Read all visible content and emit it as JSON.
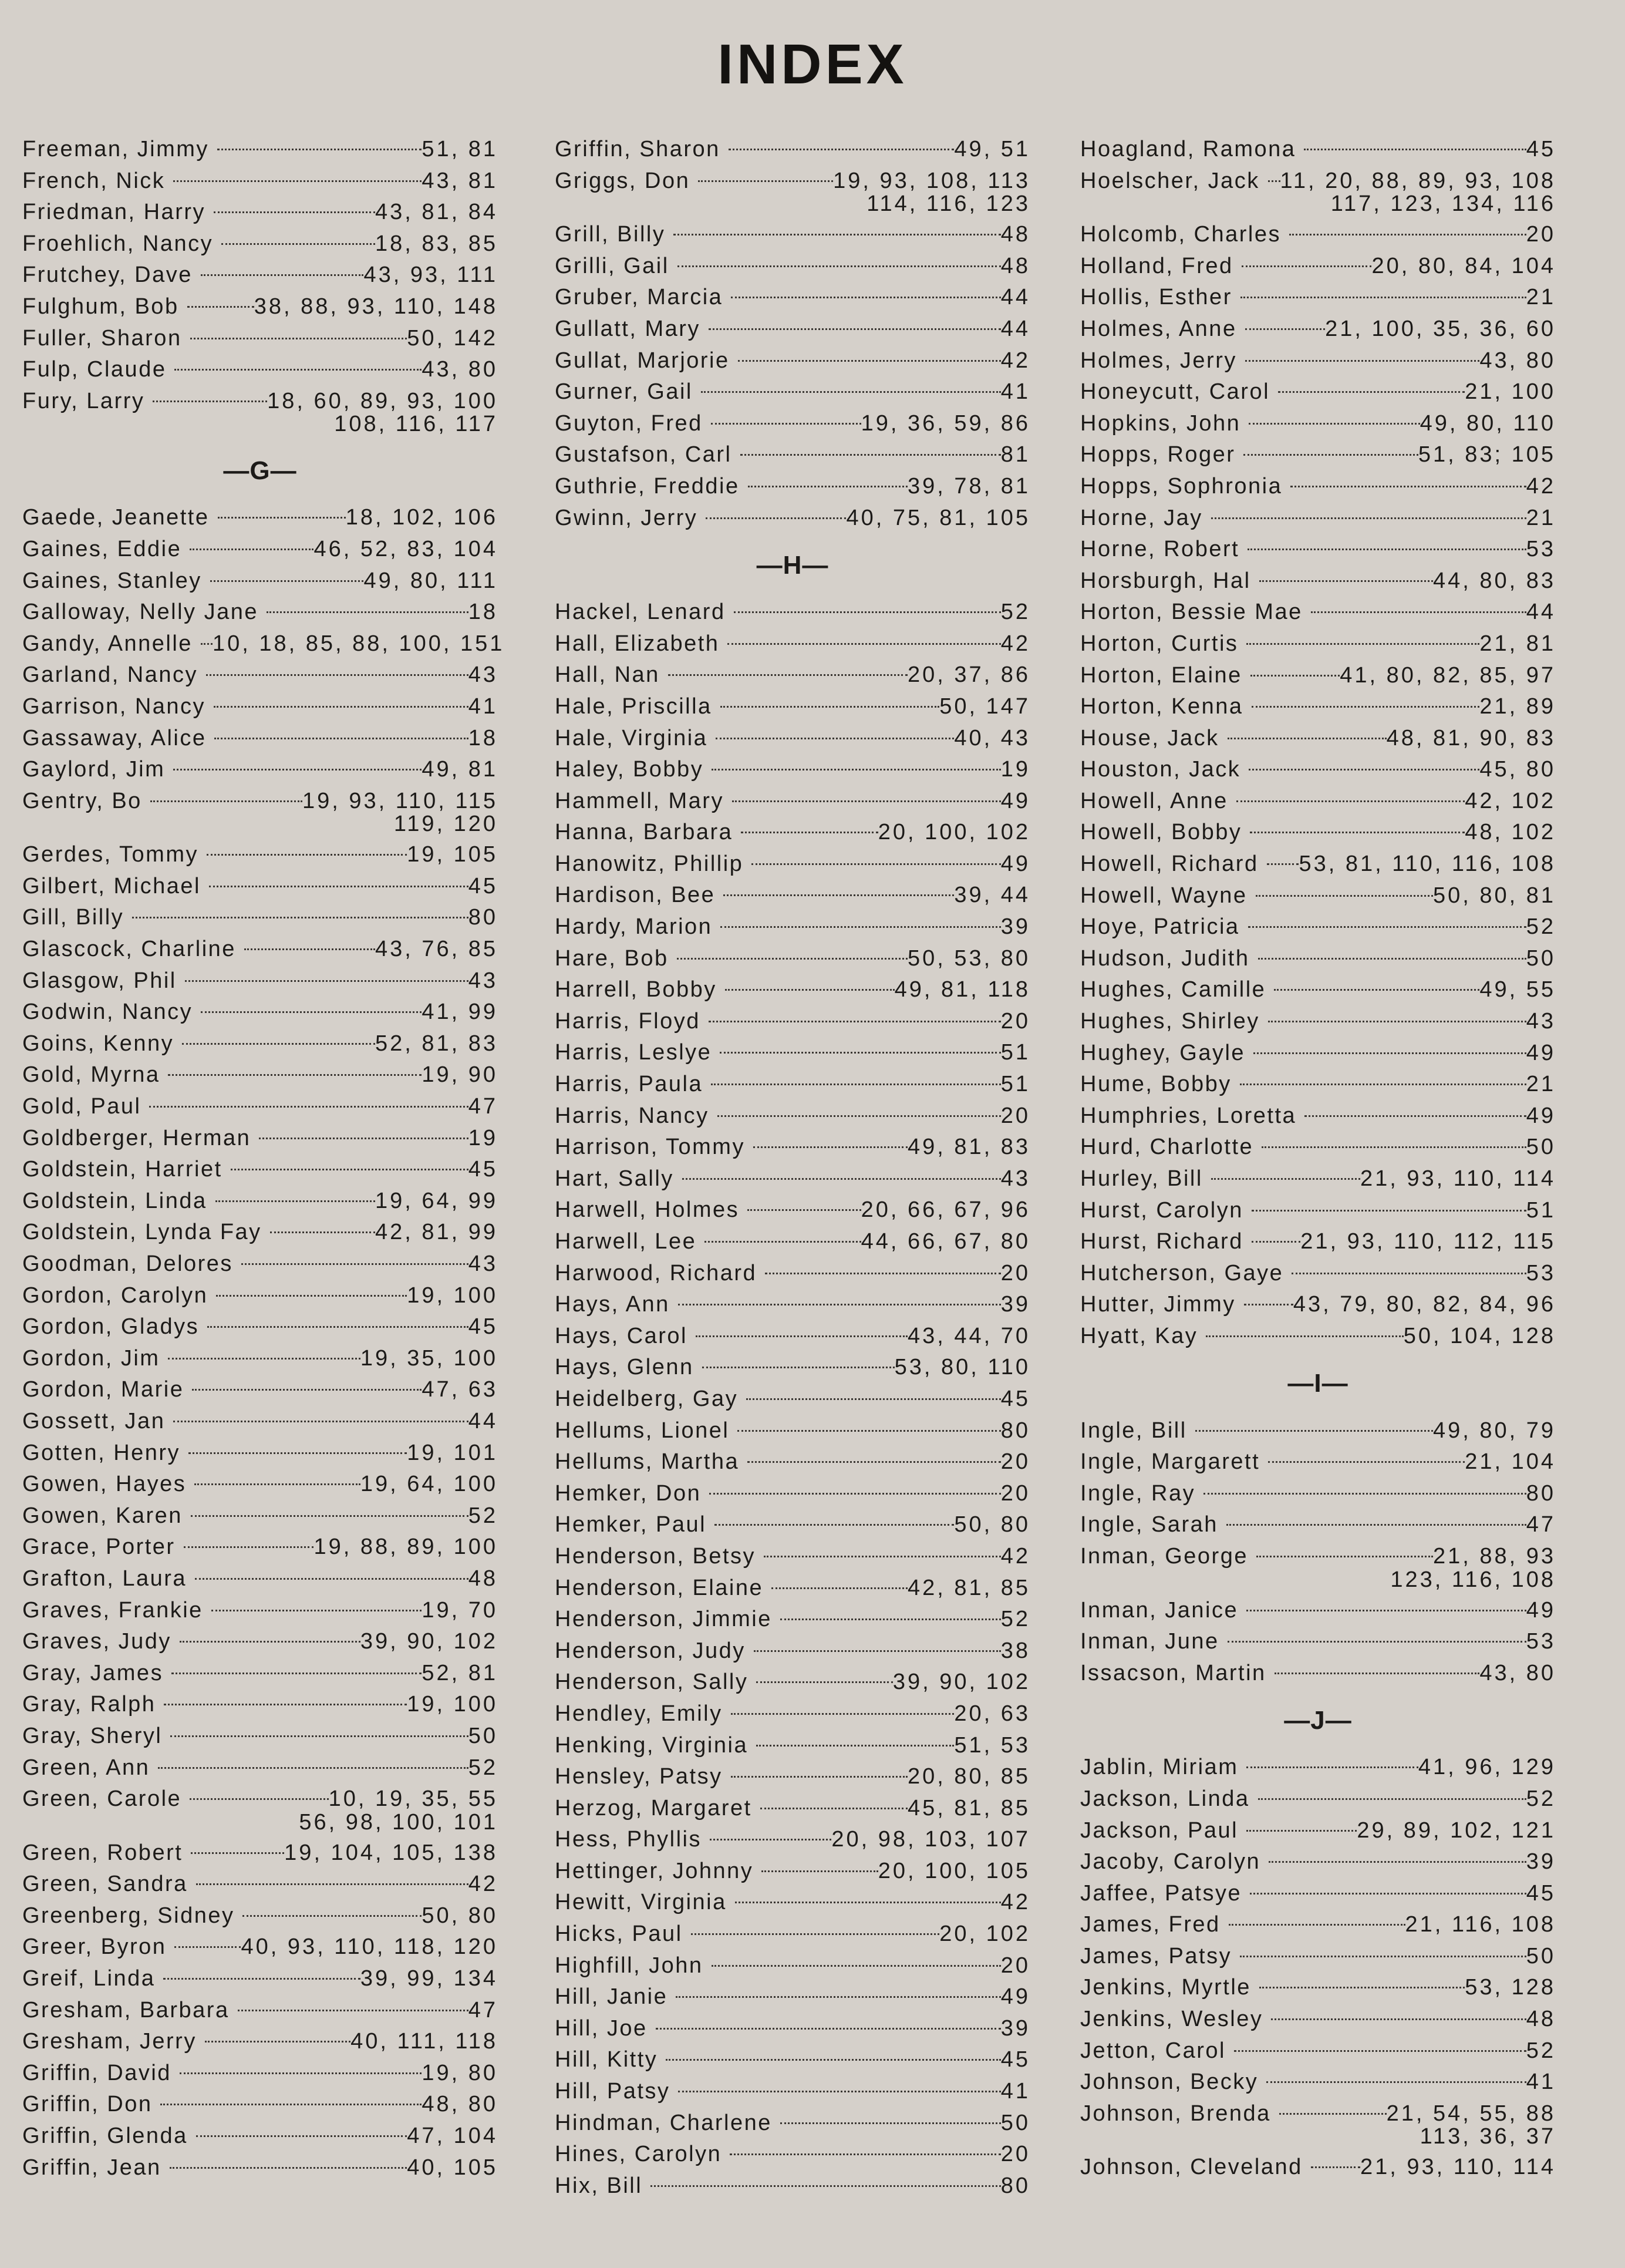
{
  "title": "INDEX",
  "columns": [
    [
      {
        "name": "Freeman, Jimmy",
        "pages": "51, 81"
      },
      {
        "name": "French, Nick",
        "pages": "43, 81"
      },
      {
        "name": "Friedman, Harry",
        "pages": "43, 81, 84"
      },
      {
        "name": "Froehlich, Nancy",
        "pages": "18, 83, 85"
      },
      {
        "name": "Frutchey, Dave",
        "pages": "43, 93, 111"
      },
      {
        "name": "Fulghum, Bob",
        "pages": "38, 88, 93, 110, 148"
      },
      {
        "name": "Fuller, Sharon",
        "pages": "50, 142"
      },
      {
        "name": "Fulp, Claude",
        "pages": "43, 80"
      },
      {
        "name": "Fury, Larry",
        "pages": "18, 60, 89, 93, 100",
        "more": "108, 116, 117"
      },
      {
        "heading": "—G—"
      },
      {
        "name": "Gaede, Jeanette",
        "pages": "18, 102, 106"
      },
      {
        "name": "Gaines, Eddie",
        "pages": "46, 52, 83, 104"
      },
      {
        "name": "Gaines, Stanley",
        "pages": "49, 80, 111"
      },
      {
        "name": "Galloway, Nelly Jane",
        "pages": "18"
      },
      {
        "name": "Gandy, Annelle",
        "pages": "10, 18, 85, 88, 100, 151"
      },
      {
        "name": "Garland, Nancy",
        "pages": "43"
      },
      {
        "name": "Garrison, Nancy",
        "pages": "41"
      },
      {
        "name": "Gassaway, Alice",
        "pages": "18"
      },
      {
        "name": "Gaylord, Jim",
        "pages": "49, 81"
      },
      {
        "name": "Gentry, Bo",
        "pages": "19, 93, 110, 115",
        "more": "119, 120"
      },
      {
        "name": "Gerdes, Tommy",
        "pages": "19, 105"
      },
      {
        "name": "Gilbert, Michael",
        "pages": "45"
      },
      {
        "name": "Gill, Billy",
        "pages": "80"
      },
      {
        "name": "Glascock, Charline",
        "pages": "43, 76, 85"
      },
      {
        "name": "Glasgow, Phil",
        "pages": "43"
      },
      {
        "name": "Godwin, Nancy",
        "pages": "41, 99"
      },
      {
        "name": "Goins, Kenny",
        "pages": "52, 81, 83"
      },
      {
        "name": "Gold, Myrna",
        "pages": "19, 90"
      },
      {
        "name": "Gold, Paul",
        "pages": "47"
      },
      {
        "name": "Goldberger, Herman",
        "pages": "19"
      },
      {
        "name": "Goldstein, Harriet",
        "pages": "45"
      },
      {
        "name": "Goldstein, Linda",
        "pages": "19, 64, 99"
      },
      {
        "name": "Goldstein, Lynda Fay",
        "pages": "42, 81, 99"
      },
      {
        "name": "Goodman, Delores",
        "pages": "43"
      },
      {
        "name": "Gordon, Carolyn",
        "pages": "19, 100"
      },
      {
        "name": "Gordon, Gladys",
        "pages": "45"
      },
      {
        "name": "Gordon, Jim",
        "pages": "19, 35, 100"
      },
      {
        "name": "Gordon, Marie",
        "pages": "47, 63"
      },
      {
        "name": "Gossett, Jan",
        "pages": "44"
      },
      {
        "name": "Gotten, Henry",
        "pages": "19, 101"
      },
      {
        "name": "Gowen, Hayes",
        "pages": "19, 64, 100"
      },
      {
        "name": "Gowen, Karen",
        "pages": "52"
      },
      {
        "name": "Grace, Porter",
        "pages": "19, 88, 89, 100"
      },
      {
        "name": "Grafton, Laura",
        "pages": "48"
      },
      {
        "name": "Graves, Frankie",
        "pages": "19, 70"
      },
      {
        "name": "Graves, Judy",
        "pages": "39, 90, 102"
      },
      {
        "name": "Gray, James",
        "pages": "52, 81"
      },
      {
        "name": "Gray, Ralph",
        "pages": "19, 100"
      },
      {
        "name": "Gray, Sheryl",
        "pages": "50"
      },
      {
        "name": "Green, Ann",
        "pages": "52"
      },
      {
        "name": "Green, Carole",
        "pages": "10, 19, 35, 55",
        "more": "56, 98, 100, 101"
      },
      {
        "name": "Green, Robert",
        "pages": "19, 104, 105, 138"
      },
      {
        "name": "Green, Sandra",
        "pages": "42"
      },
      {
        "name": "Greenberg, Sidney",
        "pages": "50, 80"
      },
      {
        "name": "Greer, Byron",
        "pages": "40, 93, 110, 118, 120"
      },
      {
        "name": "Greif, Linda",
        "pages": "39, 99, 134"
      },
      {
        "name": "Gresham, Barbara",
        "pages": "47"
      },
      {
        "name": "Gresham, Jerry",
        "pages": "40, 111, 118"
      },
      {
        "name": "Griffin, David",
        "pages": "19, 80"
      },
      {
        "name": "Griffin, Don",
        "pages": "48, 80"
      },
      {
        "name": "Griffin, Glenda",
        "pages": "47, 104"
      },
      {
        "name": "Griffin, Jean",
        "pages": "40, 105"
      }
    ],
    [
      {
        "name": "Griffin, Sharon",
        "pages": "49, 51"
      },
      {
        "name": "Griggs, Don",
        "pages": "19, 93, 108, 113",
        "more": "114, 116, 123"
      },
      {
        "name": "Grill, Billy",
        "pages": "48"
      },
      {
        "name": "Grilli, Gail",
        "pages": "48"
      },
      {
        "name": "Gruber, Marcia",
        "pages": "44"
      },
      {
        "name": "Gullatt, Mary",
        "pages": "44"
      },
      {
        "name": "Gullat, Marjorie",
        "pages": "42"
      },
      {
        "name": "Gurner, Gail",
        "pages": "41"
      },
      {
        "name": "Guyton, Fred",
        "pages": "19, 36, 59, 86"
      },
      {
        "name": "Gustafson, Carl",
        "pages": "81"
      },
      {
        "name": "Guthrie, Freddie",
        "pages": "39, 78, 81"
      },
      {
        "name": "Gwinn, Jerry",
        "pages": "40, 75, 81, 105"
      },
      {
        "heading": "—H—"
      },
      {
        "name": "Hackel, Lenard",
        "pages": "52"
      },
      {
        "name": "Hall, Elizabeth",
        "pages": "42"
      },
      {
        "name": "Hall, Nan",
        "pages": "20, 37, 86"
      },
      {
        "name": "Hale, Priscilla",
        "pages": "50, 147"
      },
      {
        "name": "Hale, Virginia",
        "pages": "40, 43"
      },
      {
        "name": "Haley, Bobby",
        "pages": "19"
      },
      {
        "name": "Hammell, Mary",
        "pages": "49"
      },
      {
        "name": "Hanna, Barbara",
        "pages": "20, 100, 102"
      },
      {
        "name": "Hanowitz, Phillip",
        "pages": "49"
      },
      {
        "name": "Hardison, Bee",
        "pages": "39, 44"
      },
      {
        "name": "Hardy, Marion",
        "pages": "39"
      },
      {
        "name": "Hare, Bob",
        "pages": "50, 53, 80"
      },
      {
        "name": "Harrell, Bobby",
        "pages": "49, 81, 118"
      },
      {
        "name": "Harris, Floyd",
        "pages": "20"
      },
      {
        "name": "Harris, Leslye",
        "pages": "51"
      },
      {
        "name": "Harris, Paula",
        "pages": "51"
      },
      {
        "name": "Harris, Nancy",
        "pages": "20"
      },
      {
        "name": "Harrison, Tommy",
        "pages": "49, 81, 83"
      },
      {
        "name": "Hart, Sally",
        "pages": "43"
      },
      {
        "name": "Harwell, Holmes",
        "pages": "20, 66, 67, 96"
      },
      {
        "name": "Harwell, Lee",
        "pages": "44, 66, 67, 80"
      },
      {
        "name": "Harwood, Richard",
        "pages": "20"
      },
      {
        "name": "Hays, Ann",
        "pages": "39"
      },
      {
        "name": "Hays, Carol",
        "pages": "43, 44, 70"
      },
      {
        "name": "Hays, Glenn",
        "pages": "53, 80, 110"
      },
      {
        "name": "Heidelberg, Gay",
        "pages": "45"
      },
      {
        "name": "Hellums, Lionel",
        "pages": "80"
      },
      {
        "name": "Hellums, Martha",
        "pages": "20"
      },
      {
        "name": "Hemker, Don",
        "pages": "20"
      },
      {
        "name": "Hemker, Paul",
        "pages": "50, 80"
      },
      {
        "name": "Henderson, Betsy",
        "pages": "42"
      },
      {
        "name": "Henderson, Elaine",
        "pages": "42, 81, 85"
      },
      {
        "name": "Henderson, Jimmie",
        "pages": "52"
      },
      {
        "name": "Henderson, Judy",
        "pages": "38"
      },
      {
        "name": "Henderson, Sally",
        "pages": "39, 90, 102"
      },
      {
        "name": "Hendley, Emily",
        "pages": "20, 63"
      },
      {
        "name": "Henking, Virginia",
        "pages": "51, 53"
      },
      {
        "name": "Hensley, Patsy",
        "pages": "20, 80, 85"
      },
      {
        "name": "Herzog, Margaret",
        "pages": "45, 81, 85"
      },
      {
        "name": "Hess, Phyllis",
        "pages": "20, 98, 103, 107"
      },
      {
        "name": "Hettinger, Johnny",
        "pages": "20, 100, 105"
      },
      {
        "name": "Hewitt, Virginia",
        "pages": "42"
      },
      {
        "name": "Hicks, Paul",
        "pages": "20, 102"
      },
      {
        "name": "Highfill, John",
        "pages": "20"
      },
      {
        "name": "Hill, Janie",
        "pages": "49"
      },
      {
        "name": "Hill, Joe",
        "pages": "39"
      },
      {
        "name": "Hill, Kitty",
        "pages": "45"
      },
      {
        "name": "Hill, Patsy",
        "pages": "41"
      },
      {
        "name": "Hindman, Charlene",
        "pages": "50"
      },
      {
        "name": "Hines, Carolyn",
        "pages": "20"
      },
      {
        "name": "Hix, Bill",
        "pages": "80"
      }
    ],
    [
      {
        "name": "Hoagland, Ramona",
        "pages": "45"
      },
      {
        "name": "Hoelscher, Jack",
        "pages": "11, 20, 88, 89, 93, 108",
        "more": "117, 123, 134, 116"
      },
      {
        "name": "Holcomb, Charles",
        "pages": "20"
      },
      {
        "name": "Holland, Fred",
        "pages": "20, 80, 84, 104"
      },
      {
        "name": "Hollis, Esther",
        "pages": "21"
      },
      {
        "name": "Holmes, Anne",
        "pages": "21, 100, 35, 36, 60"
      },
      {
        "name": "Holmes, Jerry",
        "pages": "43, 80"
      },
      {
        "name": "Honeycutt, Carol",
        "pages": "21, 100"
      },
      {
        "name": "Hopkins, John",
        "pages": "49, 80, 110"
      },
      {
        "name": "Hopps, Roger",
        "pages": "51, 83; 105"
      },
      {
        "name": "Hopps, Sophronia",
        "pages": "42"
      },
      {
        "name": "Horne, Jay",
        "pages": "21"
      },
      {
        "name": "Horne, Robert",
        "pages": "53"
      },
      {
        "name": "Horsburgh, Hal",
        "pages": "44, 80, 83"
      },
      {
        "name": "Horton, Bessie Mae",
        "pages": "44"
      },
      {
        "name": "Horton, Curtis",
        "pages": "21, 81"
      },
      {
        "name": "Horton, Elaine",
        "pages": "41, 80, 82, 85, 97"
      },
      {
        "name": "Horton, Kenna",
        "pages": "21, 89"
      },
      {
        "name": "House, Jack",
        "pages": "48, 81, 90, 83"
      },
      {
        "name": "Houston, Jack",
        "pages": "45, 80"
      },
      {
        "name": "Howell, Anne",
        "pages": "42, 102"
      },
      {
        "name": "Howell, Bobby",
        "pages": "48, 102"
      },
      {
        "name": "Howell, Richard",
        "pages": "53, 81, 110, 116, 108"
      },
      {
        "name": "Howell, Wayne",
        "pages": "50, 80, 81"
      },
      {
        "name": "Hoye, Patricia",
        "pages": "52"
      },
      {
        "name": "Hudson, Judith",
        "pages": "50"
      },
      {
        "name": "Hughes, Camille",
        "pages": "49, 55"
      },
      {
        "name": "Hughes, Shirley",
        "pages": "43"
      },
      {
        "name": "Hughey, Gayle",
        "pages": "49"
      },
      {
        "name": "Hume, Bobby",
        "pages": "21"
      },
      {
        "name": "Humphries, Loretta",
        "pages": "49"
      },
      {
        "name": "Hurd, Charlotte",
        "pages": "50"
      },
      {
        "name": "Hurley, Bill",
        "pages": "21, 93, 110, 114"
      },
      {
        "name": "Hurst, Carolyn",
        "pages": "51"
      },
      {
        "name": "Hurst, Richard",
        "pages": "21, 93, 110, 112, 115"
      },
      {
        "name": "Hutcherson, Gaye",
        "pages": "53"
      },
      {
        "name": "Hutter, Jimmy",
        "pages": "43, 79, 80, 82, 84, 96"
      },
      {
        "name": "Hyatt, Kay",
        "pages": "50, 104, 128"
      },
      {
        "heading": "—I—"
      },
      {
        "name": "Ingle, Bill",
        "pages": "49, 80, 79"
      },
      {
        "name": "Ingle, Margarett",
        "pages": "21, 104"
      },
      {
        "name": "Ingle, Ray",
        "pages": "80"
      },
      {
        "name": "Ingle, Sarah",
        "pages": "47"
      },
      {
        "name": "Inman, George",
        "pages": "21, 88, 93",
        "more": "123, 116, 108"
      },
      {
        "name": "Inman, Janice",
        "pages": "49"
      },
      {
        "name": "Inman, June",
        "pages": "53"
      },
      {
        "name": "Issacson, Martin",
        "pages": "43, 80"
      },
      {
        "heading": "—J—"
      },
      {
        "name": "Jablin, Miriam",
        "pages": "41, 96, 129"
      },
      {
        "name": "Jackson, Linda",
        "pages": "52"
      },
      {
        "name": "Jackson, Paul",
        "pages": "29, 89, 102, 121"
      },
      {
        "name": "Jacoby, Carolyn",
        "pages": "39"
      },
      {
        "name": "Jaffee, Patsye",
        "pages": "45"
      },
      {
        "name": "James, Fred",
        "pages": "21, 116, 108"
      },
      {
        "name": "James, Patsy",
        "pages": "50"
      },
      {
        "name": "Jenkins, Myrtle",
        "pages": "53, 128"
      },
      {
        "name": "Jenkins, Wesley",
        "pages": "48"
      },
      {
        "name": "Jetton, Carol",
        "pages": "52"
      },
      {
        "name": "Johnson, Becky",
        "pages": "41"
      },
      {
        "name": "Johnson, Brenda",
        "pages": "21, 54, 55, 88",
        "more": "113, 36, 37"
      },
      {
        "name": "Johnson, Cleveland",
        "pages": "21, 93, 110, 114"
      }
    ]
  ]
}
